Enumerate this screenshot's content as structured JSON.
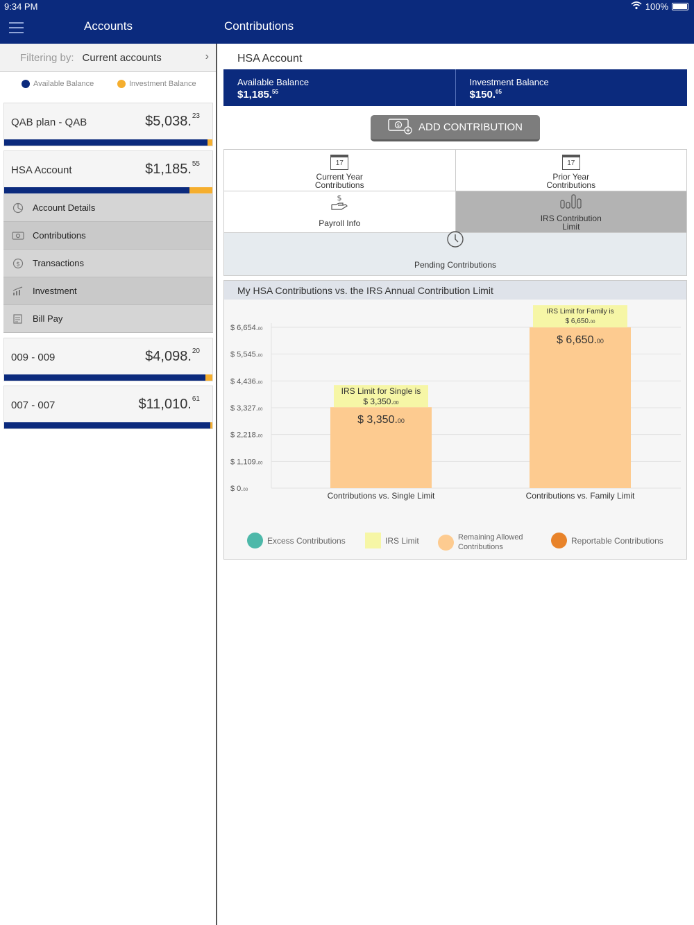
{
  "status": {
    "time": "9:34 PM",
    "battery": "100%"
  },
  "nav": {
    "left_title": "Accounts",
    "right_title": "Contributions"
  },
  "filter": {
    "label": "Filtering by:",
    "value": "Current accounts"
  },
  "balance_legend": {
    "available": "Available Balance",
    "investment": "Investment Balance"
  },
  "colors": {
    "navy": "#0b2a7d",
    "gold": "#f5ae2e",
    "excess": "#4db8a9",
    "irs_limit": "#f6f6a6",
    "remaining": "#fdcb90",
    "reportable": "#e8832a"
  },
  "accounts": [
    {
      "name": "QAB plan - QAB",
      "whole": "$5,038.",
      "cents": "23",
      "available_fraction": 0.975
    },
    {
      "name": "HSA Account",
      "whole": "$1,185.",
      "cents": "55",
      "available_fraction": 0.89
    },
    {
      "name": "009 - 009",
      "whole": "$4,098.",
      "cents": "20",
      "available_fraction": 0.965
    },
    {
      "name": "007 - 007",
      "whole": "$11,010.",
      "cents": "61",
      "available_fraction": 0.99
    }
  ],
  "submenu": [
    "Account Details",
    "Contributions",
    "Transactions",
    "Investment",
    "Bill Pay"
  ],
  "hsa": {
    "title": "HSA Account",
    "available_label": "Available Balance",
    "available_whole": "$1,185.",
    "available_cents": "55",
    "investment_label": "Investment Balance",
    "investment_whole": "$150.",
    "investment_cents": "05"
  },
  "add_button": "ADD CONTRIBUTION",
  "tiles": {
    "current_year_l1": "Current Year",
    "current_year_l2": "Contributions",
    "prior_year_l1": "Prior Year",
    "prior_year_l2": "Contributions",
    "payroll": "Payroll Info",
    "irs_l1": "IRS Contribution",
    "irs_l2": "Limit",
    "pending": "Pending Contributions",
    "cal_day": "17"
  },
  "chart_title": "My HSA Contributions vs. the IRS Annual Contribution Limit",
  "chart_data": {
    "type": "bar",
    "title": "My HSA Contributions vs. the IRS Annual Contribution Limit",
    "categories": [
      "Contributions vs. Single Limit",
      "Contributions vs. Family Limit"
    ],
    "series": [
      {
        "name": "Remaining Allowed Contributions",
        "values": [
          3350,
          6650
        ]
      }
    ],
    "bar_labels": [
      "$ 3,350.",
      "$ 6,650."
    ],
    "bar_label_cents": [
      "00",
      "00"
    ],
    "limit_labels": [
      {
        "line1": "IRS Limit for Single is",
        "line2": "$ 3,350.",
        "cents": "00"
      },
      {
        "line1": "IRS Limit for Family is",
        "line2": "$ 6,650.",
        "cents": "00"
      }
    ],
    "y_ticks": [
      {
        "value": 6654,
        "label": "$ 6,654.",
        "cents": "00"
      },
      {
        "value": 5545,
        "label": "$ 5,545.",
        "cents": "00"
      },
      {
        "value": 4436,
        "label": "$ 4,436.",
        "cents": "00"
      },
      {
        "value": 3327,
        "label": "$ 3,327.",
        "cents": "00"
      },
      {
        "value": 2218,
        "label": "$ 2,218.",
        "cents": "00"
      },
      {
        "value": 1109,
        "label": "$ 1,109.",
        "cents": "00"
      },
      {
        "value": 0,
        "label": "$ 0.",
        "cents": "00"
      }
    ],
    "ylim": [
      0,
      6654
    ],
    "grid": true,
    "legend": [
      "Excess Contributions",
      "IRS Limit",
      "Remaining Allowed Contributions",
      "Reportable Contributions"
    ],
    "legend_placement": "bottom"
  }
}
